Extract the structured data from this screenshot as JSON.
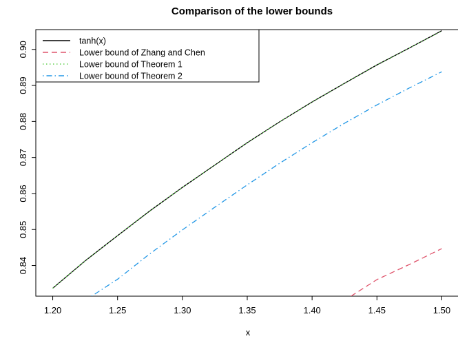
{
  "chart_data": {
    "type": "line",
    "title": "Comparison of the lower bounds",
    "xlabel": "x",
    "ylabel": "",
    "xlim": [
      1.2,
      1.5
    ],
    "ylim": [
      0.8315,
      0.9055
    ],
    "x_ticks": [
      1.2,
      1.25,
      1.3,
      1.35,
      1.4,
      1.45,
      1.5
    ],
    "x_tick_labels": [
      "1.20",
      "1.25",
      "1.30",
      "1.35",
      "1.40",
      "1.45",
      "1.50"
    ],
    "y_ticks": [
      0.84,
      0.85,
      0.86,
      0.87,
      0.88,
      0.89,
      0.9
    ],
    "y_tick_labels": [
      "0.84",
      "0.85",
      "0.86",
      "0.87",
      "0.88",
      "0.89",
      "0.90"
    ],
    "grid": false,
    "legend_position": "top-left",
    "series": [
      {
        "name": "tanh(x)",
        "color": "#000000",
        "dash": "solid",
        "x": [
          1.2,
          1.225,
          1.25,
          1.275,
          1.3,
          1.325,
          1.35,
          1.375,
          1.4,
          1.425,
          1.45,
          1.475,
          1.5
        ],
        "y": [
          0.8337,
          0.8413,
          0.8483,
          0.8552,
          0.8617,
          0.8679,
          0.8741,
          0.8799,
          0.8854,
          0.8906,
          0.8957,
          0.9004,
          0.9052
        ]
      },
      {
        "name": "Lower bound of Zhang and Chen",
        "color": "#DF536B",
        "dash": "dashed",
        "x": [
          1.43,
          1.45,
          1.475,
          1.5
        ],
        "y": [
          0.8315,
          0.8361,
          0.8403,
          0.8447
        ]
      },
      {
        "name": "Lower bound of Theorem 1",
        "color": "#61D04F",
        "dash": "dotted",
        "x": [
          1.2,
          1.225,
          1.25,
          1.275,
          1.3,
          1.325,
          1.35,
          1.375,
          1.4,
          1.425,
          1.45,
          1.475,
          1.5
        ],
        "y": [
          0.8337,
          0.8413,
          0.8483,
          0.8552,
          0.8617,
          0.8679,
          0.8741,
          0.8799,
          0.8854,
          0.8906,
          0.8957,
          0.9004,
          0.9051
        ]
      },
      {
        "name": "Lower bound of Theorem 2",
        "color": "#2297E6",
        "dash": "dotdash",
        "x": [
          1.23,
          1.25,
          1.275,
          1.3,
          1.325,
          1.35,
          1.375,
          1.4,
          1.425,
          1.45,
          1.475,
          1.5
        ],
        "y": [
          0.8315,
          0.8362,
          0.8433,
          0.8499,
          0.8562,
          0.8624,
          0.8684,
          0.8741,
          0.8795,
          0.8846,
          0.8893,
          0.8938
        ]
      }
    ]
  }
}
